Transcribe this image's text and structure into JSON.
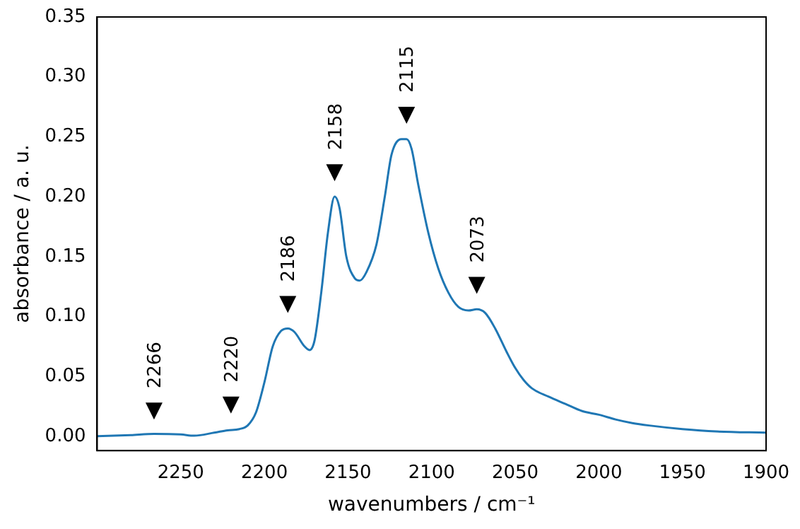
{
  "chart_data": {
    "type": "line",
    "xlabel": "wavenumbers / cm⁻¹",
    "ylabel": "absorbance / a. u.",
    "xlim": [
      2300,
      1900
    ],
    "xticks": [
      2250,
      2200,
      2150,
      2100,
      2050,
      2000,
      1950,
      1900
    ],
    "ylim": [
      -0.012,
      0.35
    ],
    "yticks": [
      {
        "value": 0,
        "label": "0.00"
      },
      {
        "value": 0.05,
        "label": "0.05"
      },
      {
        "value": 0.1,
        "label": "0.10"
      },
      {
        "value": 0.15,
        "label": "0.15"
      },
      {
        "value": 0.2,
        "label": "0.20"
      },
      {
        "value": 0.25,
        "label": "0.25"
      },
      {
        "value": 0.3,
        "label": "0.30"
      },
      {
        "value": 0.35,
        "label": "0.35"
      }
    ],
    "grid": false,
    "legend": false,
    "marker": "none",
    "line_style": "solid",
    "x": [
      2300,
      2280,
      2266,
      2250,
      2242,
      2230,
      2222,
      2215,
      2210,
      2205,
      2200,
      2195,
      2190,
      2186,
      2182,
      2176,
      2173,
      2170,
      2166,
      2162,
      2158,
      2155,
      2151,
      2146,
      2143,
      2139,
      2133,
      2128,
      2124,
      2118,
      2115,
      2112,
      2108,
      2102,
      2096,
      2090,
      2084,
      2078,
      2073,
      2068,
      2062,
      2055,
      2050,
      2045,
      2040,
      2030,
      2020,
      2010,
      2000,
      1990,
      1980,
      1970,
      1950,
      1930,
      1900
    ],
    "series": [
      {
        "color": "#1f77b4",
        "values": [
          0,
          0.001,
          0.002,
          0.0015,
          0.0005,
          0.003,
          0.005,
          0.006,
          0.009,
          0.02,
          0.045,
          0.075,
          0.088,
          0.09,
          0.087,
          0.075,
          0.072,
          0.08,
          0.12,
          0.17,
          0.2,
          0.19,
          0.15,
          0.132,
          0.13,
          0.137,
          0.16,
          0.2,
          0.235,
          0.248,
          0.248,
          0.24,
          0.21,
          0.17,
          0.14,
          0.12,
          0.108,
          0.105,
          0.106,
          0.103,
          0.09,
          0.07,
          0.057,
          0.047,
          0.04,
          0.033,
          0.027,
          0.021,
          0.018,
          0.014,
          0.011,
          0.009,
          0.006,
          0.004,
          0.003
        ]
      }
    ],
    "annotations": [
      {
        "text": "2266",
        "x": 2266,
        "y": 0.021
      },
      {
        "text": "2220",
        "x": 2220,
        "y": 0.026
      },
      {
        "text": "2186",
        "x": 2186,
        "y": 0.11
      },
      {
        "text": "2158",
        "x": 2158,
        "y": 0.22
      },
      {
        "text": "2115",
        "x": 2115,
        "y": 0.268
      },
      {
        "text": "2073",
        "x": 2073,
        "y": 0.126
      }
    ]
  }
}
